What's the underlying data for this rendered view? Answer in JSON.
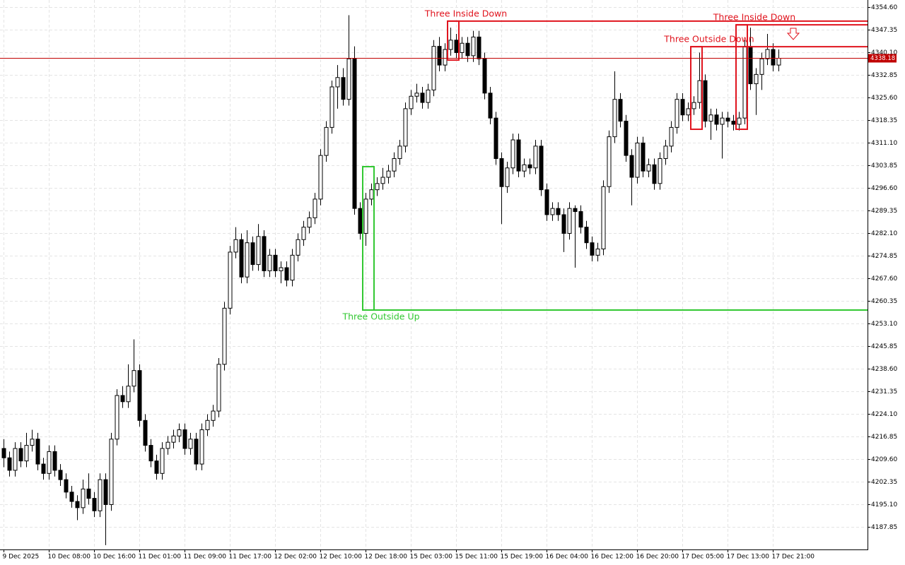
{
  "chart_data": {
    "type": "candlestick",
    "categories": [
      "9 Dec 2025",
      null,
      null,
      null,
      null,
      null,
      null,
      null,
      "10 Dec 08:00",
      null,
      null,
      null,
      null,
      null,
      null,
      null,
      "10 Dec 16:00",
      null,
      null,
      null,
      null,
      null,
      null,
      null,
      "11 Dec 01:00",
      null,
      null,
      null,
      null,
      null,
      null,
      null,
      "11 Dec 09:00",
      null,
      null,
      null,
      null,
      null,
      null,
      null,
      "11 Dec 17:00",
      null,
      null,
      null,
      null,
      null,
      null,
      null,
      "12 Dec 02:00",
      null,
      null,
      null,
      null,
      null,
      null,
      null,
      "12 Dec 10:00",
      null,
      null,
      null,
      null,
      null,
      null,
      null,
      "12 Dec 18:00",
      null,
      null,
      null,
      null,
      null,
      null,
      null,
      "15 Dec 03:00",
      null,
      null,
      null,
      null,
      null,
      null,
      null,
      "15 Dec 11:00",
      null,
      null,
      null,
      null,
      null,
      null,
      null,
      "15 Dec 19:00",
      null,
      null,
      null,
      null,
      null,
      null,
      null,
      "16 Dec 04:00",
      null,
      null,
      null,
      null,
      null,
      null,
      null,
      "16 Dec 12:00",
      null,
      null,
      null,
      null,
      null,
      null,
      null,
      "16 Dec 20:00",
      null,
      null,
      null,
      null,
      null,
      null,
      null,
      "17 Dec 05:00",
      null,
      null,
      null,
      null,
      null,
      null,
      null,
      "17 Dec 13:00",
      null,
      null,
      null,
      null,
      null,
      null,
      null,
      "17 Dec 21:00",
      null
    ],
    "candles": [
      [
        4213,
        4216,
        4207,
        4210
      ],
      [
        4210,
        4212,
        4204,
        4206
      ],
      [
        4206,
        4215,
        4204,
        4213
      ],
      [
        4213,
        4215,
        4207,
        4209
      ],
      [
        4209,
        4218,
        4207,
        4214
      ],
      [
        4214,
        4219,
        4212,
        4216
      ],
      [
        4216,
        4218,
        4206,
        4208
      ],
      [
        4208,
        4210,
        4203,
        4205
      ],
      [
        4205,
        4214,
        4203,
        4212
      ],
      [
        4212,
        4214,
        4204,
        4206
      ],
      [
        4206,
        4208,
        4201,
        4203
      ],
      [
        4203,
        4205,
        4197,
        4199
      ],
      [
        4199,
        4201,
        4194,
        4196
      ],
      [
        4196,
        4198,
        4190,
        4194
      ],
      [
        4194,
        4203,
        4192,
        4200
      ],
      [
        4200,
        4205,
        4195,
        4197
      ],
      [
        4197,
        4199,
        4191,
        4193
      ],
      [
        4193,
        4205,
        4191,
        4203
      ],
      [
        4203,
        4205,
        4182,
        4195
      ],
      [
        4195,
        4218,
        4193,
        4216
      ],
      [
        4216,
        4232,
        4214,
        4230
      ],
      [
        4230,
        4233,
        4226,
        4228
      ],
      [
        4228,
        4240,
        4226,
        4233
      ],
      [
        4233,
        4248,
        4231,
        4238
      ],
      [
        4238,
        4240,
        4220,
        4222
      ],
      [
        4222,
        4224,
        4212,
        4214
      ],
      [
        4214,
        4216,
        4207,
        4209
      ],
      [
        4209,
        4211,
        4203,
        4205
      ],
      [
        4205,
        4215,
        4203,
        4213
      ],
      [
        4213,
        4217,
        4211,
        4215
      ],
      [
        4215,
        4219,
        4213,
        4217
      ],
      [
        4217,
        4221,
        4215,
        4219
      ],
      [
        4219,
        4221,
        4211,
        4213
      ],
      [
        4213,
        4218,
        4211,
        4216
      ],
      [
        4216,
        4218,
        4206,
        4208
      ],
      [
        4208,
        4221,
        4206,
        4219
      ],
      [
        4219,
        4224,
        4217,
        4222
      ],
      [
        4222,
        4227,
        4220,
        4225
      ],
      [
        4225,
        4242,
        4223,
        4240
      ],
      [
        4240,
        4260,
        4238,
        4258
      ],
      [
        4258,
        4278,
        4256,
        4276
      ],
      [
        4276,
        4284,
        4274,
        4280
      ],
      [
        4280,
        4282,
        4266,
        4268
      ],
      [
        4268,
        4283,
        4266,
        4279
      ],
      [
        4279,
        4281,
        4270,
        4272
      ],
      [
        4272,
        4285,
        4270,
        4281
      ],
      [
        4281,
        4283,
        4268,
        4270
      ],
      [
        4270,
        4277,
        4268,
        4275
      ],
      [
        4275,
        4277,
        4268,
        4270
      ],
      [
        4270,
        4273,
        4266,
        4271
      ],
      [
        4271,
        4273,
        4265,
        4267
      ],
      [
        4267,
        4277,
        4265,
        4275
      ],
      [
        4275,
        4282,
        4273,
        4280
      ],
      [
        4280,
        4286,
        4278,
        4284
      ],
      [
        4284,
        4289,
        4282,
        4287
      ],
      [
        4287,
        4295,
        4285,
        4293
      ],
      [
        4293,
        4309,
        4291,
        4307
      ],
      [
        4307,
        4318,
        4305,
        4316
      ],
      [
        4316,
        4331,
        4314,
        4329
      ],
      [
        4329,
        4336,
        4322,
        4332
      ],
      [
        4332,
        4335,
        4323,
        4325
      ],
      [
        4325,
        4352,
        4323,
        4338
      ],
      [
        4338,
        4342,
        4288,
        4290
      ],
      [
        4290,
        4292,
        4280,
        4282
      ],
      [
        4282,
        4295,
        4278,
        4293
      ],
      [
        4293,
        4298,
        4291,
        4296
      ],
      [
        4296,
        4300,
        4294,
        4298
      ],
      [
        4298,
        4303,
        4296,
        4300
      ],
      [
        4300,
        4304,
        4298,
        4302
      ],
      [
        4302,
        4308,
        4300,
        4306
      ],
      [
        4306,
        4312,
        4304,
        4310
      ],
      [
        4310,
        4324,
        4308,
        4322
      ],
      [
        4322,
        4328,
        4320,
        4326
      ],
      [
        4326,
        4330,
        4324,
        4327
      ],
      [
        4327,
        4329,
        4322,
        4324
      ],
      [
        4324,
        4330,
        4322,
        4328
      ],
      [
        4328,
        4344,
        4326,
        4342
      ],
      [
        4342,
        4345,
        4334,
        4336
      ],
      [
        4336,
        4343,
        4334,
        4341
      ],
      [
        4341,
        4348,
        4339,
        4344
      ],
      [
        4344,
        4346,
        4338,
        4340
      ],
      [
        4340,
        4345,
        4338,
        4343
      ],
      [
        4343,
        4345,
        4337,
        4339
      ],
      [
        4339,
        4347,
        4337,
        4345
      ],
      [
        4345,
        4347,
        4336,
        4338
      ],
      [
        4338,
        4340,
        4325,
        4327
      ],
      [
        4327,
        4329,
        4317,
        4319
      ],
      [
        4319,
        4321,
        4304,
        4306
      ],
      [
        4306,
        4308,
        4285,
        4297
      ],
      [
        4297,
        4305,
        4295,
        4303
      ],
      [
        4303,
        4314,
        4301,
        4312
      ],
      [
        4312,
        4314,
        4300,
        4302
      ],
      [
        4302,
        4306,
        4300,
        4304
      ],
      [
        4304,
        4306,
        4301,
        4303
      ],
      [
        4303,
        4312,
        4301,
        4310
      ],
      [
        4310,
        4312,
        4294,
        4296
      ],
      [
        4296,
        4298,
        4286,
        4288
      ],
      [
        4288,
        4292,
        4286,
        4290
      ],
      [
        4290,
        4292,
        4286,
        4288
      ],
      [
        4288,
        4290,
        4276,
        4282
      ],
      [
        4282,
        4292,
        4280,
        4290
      ],
      [
        4290,
        4291,
        4271,
        4289
      ],
      [
        4289,
        4291,
        4282,
        4284
      ],
      [
        4284,
        4286,
        4277,
        4279
      ],
      [
        4279,
        4281,
        4273,
        4275
      ],
      [
        4275,
        4279,
        4273,
        4277
      ],
      [
        4277,
        4299,
        4275,
        4297
      ],
      [
        4297,
        4315,
        4295,
        4313
      ],
      [
        4313,
        4334,
        4311,
        4325
      ],
      [
        4325,
        4327,
        4316,
        4318
      ],
      [
        4318,
        4320,
        4305,
        4307
      ],
      [
        4307,
        4309,
        4291,
        4300
      ],
      [
        4300,
        4313,
        4298,
        4311
      ],
      [
        4311,
        4313,
        4300,
        4302
      ],
      [
        4302,
        4306,
        4300,
        4304
      ],
      [
        4304,
        4306,
        4296,
        4298
      ],
      [
        4298,
        4308,
        4296,
        4306
      ],
      [
        4306,
        4312,
        4304,
        4310
      ],
      [
        4310,
        4318,
        4308,
        4316
      ],
      [
        4316,
        4327,
        4314,
        4325
      ],
      [
        4325,
        4327,
        4318,
        4320
      ],
      [
        4320,
        4324,
        4318,
        4322
      ],
      [
        4322,
        4326,
        4320,
        4324
      ],
      [
        4324,
        4340,
        4322,
        4331
      ],
      [
        4331,
        4333,
        4316,
        4318
      ],
      [
        4318,
        4322,
        4312,
        4320
      ],
      [
        4320,
        4322,
        4315,
        4317
      ],
      [
        4317,
        4321,
        4306,
        4319
      ],
      [
        4319,
        4321,
        4316,
        4318
      ],
      [
        4318,
        4320,
        4315,
        4317
      ],
      [
        4317,
        4321,
        4315,
        4319
      ],
      [
        4319,
        4344,
        4317,
        4342
      ],
      [
        4342,
        4348,
        4328,
        4330
      ],
      [
        4330,
        4335,
        4320,
        4333
      ],
      [
        4333,
        4340,
        4328,
        4338
      ],
      [
        4338,
        4346,
        4336,
        4341
      ],
      [
        4341,
        4343,
        4334,
        4336
      ],
      [
        4336,
        4341,
        4334,
        4338.18
      ]
    ],
    "ylim": [
      4180.6,
      4356.87
    ],
    "yticks": [
      {
        "value": 4354.6,
        "label": "4354.60"
      },
      {
        "value": 4347.35,
        "label": "4347.35"
      },
      {
        "value": 4340.1,
        "label": "4340.10"
      },
      {
        "value": 4332.85,
        "label": "4332.85"
      },
      {
        "value": 4325.6,
        "label": "4325.60"
      },
      {
        "value": 4318.35,
        "label": "4318.35"
      },
      {
        "value": 4311.1,
        "label": "4311.10"
      },
      {
        "value": 4303.85,
        "label": "4303.85"
      },
      {
        "value": 4296.6,
        "label": "4296.60"
      },
      {
        "value": 4289.35,
        "label": "4289.35"
      },
      {
        "value": 4282.1,
        "label": "4282.10"
      },
      {
        "value": 4274.85,
        "label": "4274.85"
      },
      {
        "value": 4267.6,
        "label": "4267.60"
      },
      {
        "value": 4260.35,
        "label": "4260.35"
      },
      {
        "value": 4253.1,
        "label": "4253.10"
      },
      {
        "value": 4245.85,
        "label": "4245.85"
      },
      {
        "value": 4238.6,
        "label": "4238.60"
      },
      {
        "value": 4231.35,
        "label": "4231.35"
      },
      {
        "value": 4224.1,
        "label": "4224.10"
      },
      {
        "value": 4216.85,
        "label": "4216.85"
      },
      {
        "value": 4209.6,
        "label": "4209.60"
      },
      {
        "value": 4202.35,
        "label": "4202.35"
      },
      {
        "value": 4195.1,
        "label": "4195.10"
      },
      {
        "value": 4187.85,
        "label": "4187.85"
      }
    ],
    "grid": true,
    "patterns": [
      {
        "label": "Three Inside Down",
        "start": 79,
        "end": 80,
        "high": 4350.1,
        "low": 4337.6,
        "direction": "down",
        "color": "#e0141e"
      },
      {
        "label": "Three Outside Up",
        "start": 64,
        "end": 65,
        "high": 4303.4,
        "low": 4257.4,
        "direction": "up",
        "color": "#32c832"
      },
      {
        "label": "Three Outside Down",
        "start": 122,
        "end": 123,
        "high": 4341.9,
        "low": 4315.4,
        "direction": "down",
        "color": "#e0141e"
      },
      {
        "label": "Three Inside Down",
        "start": 130,
        "end": 131,
        "high": 4348.9,
        "low": 4315.4,
        "direction": "down",
        "color": "#e0141e"
      }
    ]
  }
}
